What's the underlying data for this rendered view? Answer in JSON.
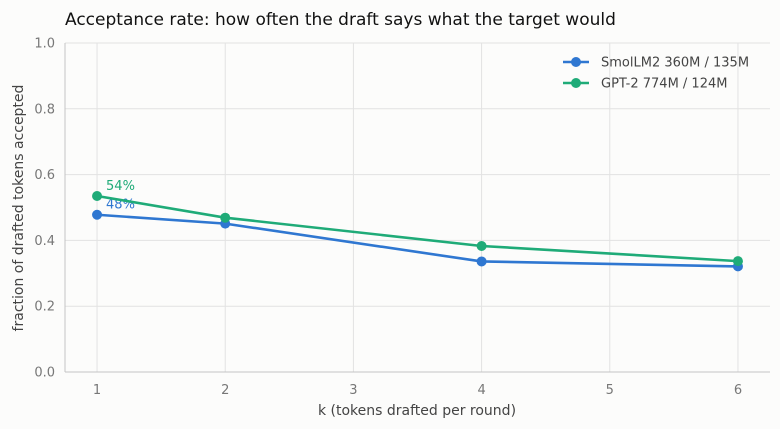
{
  "chart_data": {
    "type": "line",
    "title": "Acceptance rate: how often the draft says what the target would",
    "xlabel": "k (tokens drafted per round)",
    "ylabel": "fraction of drafted tokens accepted",
    "xlim": [
      0.75,
      6.25
    ],
    "ylim": [
      0,
      1.0
    ],
    "xticks": [
      1,
      2,
      3,
      4,
      5,
      6
    ],
    "yticks": [
      0.0,
      0.2,
      0.4,
      0.6,
      0.8,
      1.0
    ],
    "xtick_labels": [
      "1",
      "2",
      "3",
      "4",
      "5",
      "6"
    ],
    "ytick_labels": [
      "0.0",
      "0.2",
      "0.4",
      "0.6",
      "0.8",
      "1.0"
    ],
    "grid": true,
    "legend_position": "top-right",
    "series": [
      {
        "name": "SmolLM2 360M / 135M",
        "color": "#2f77d1",
        "x": [
          1,
          2,
          4,
          6
        ],
        "y": [
          0.478,
          0.451,
          0.336,
          0.321
        ],
        "annotation": "48%"
      },
      {
        "name": "GPT-2 774M / 124M",
        "color": "#1fab78",
        "x": [
          1,
          2,
          4,
          6
        ],
        "y": [
          0.535,
          0.469,
          0.383,
          0.337
        ],
        "annotation": "54%"
      }
    ]
  }
}
